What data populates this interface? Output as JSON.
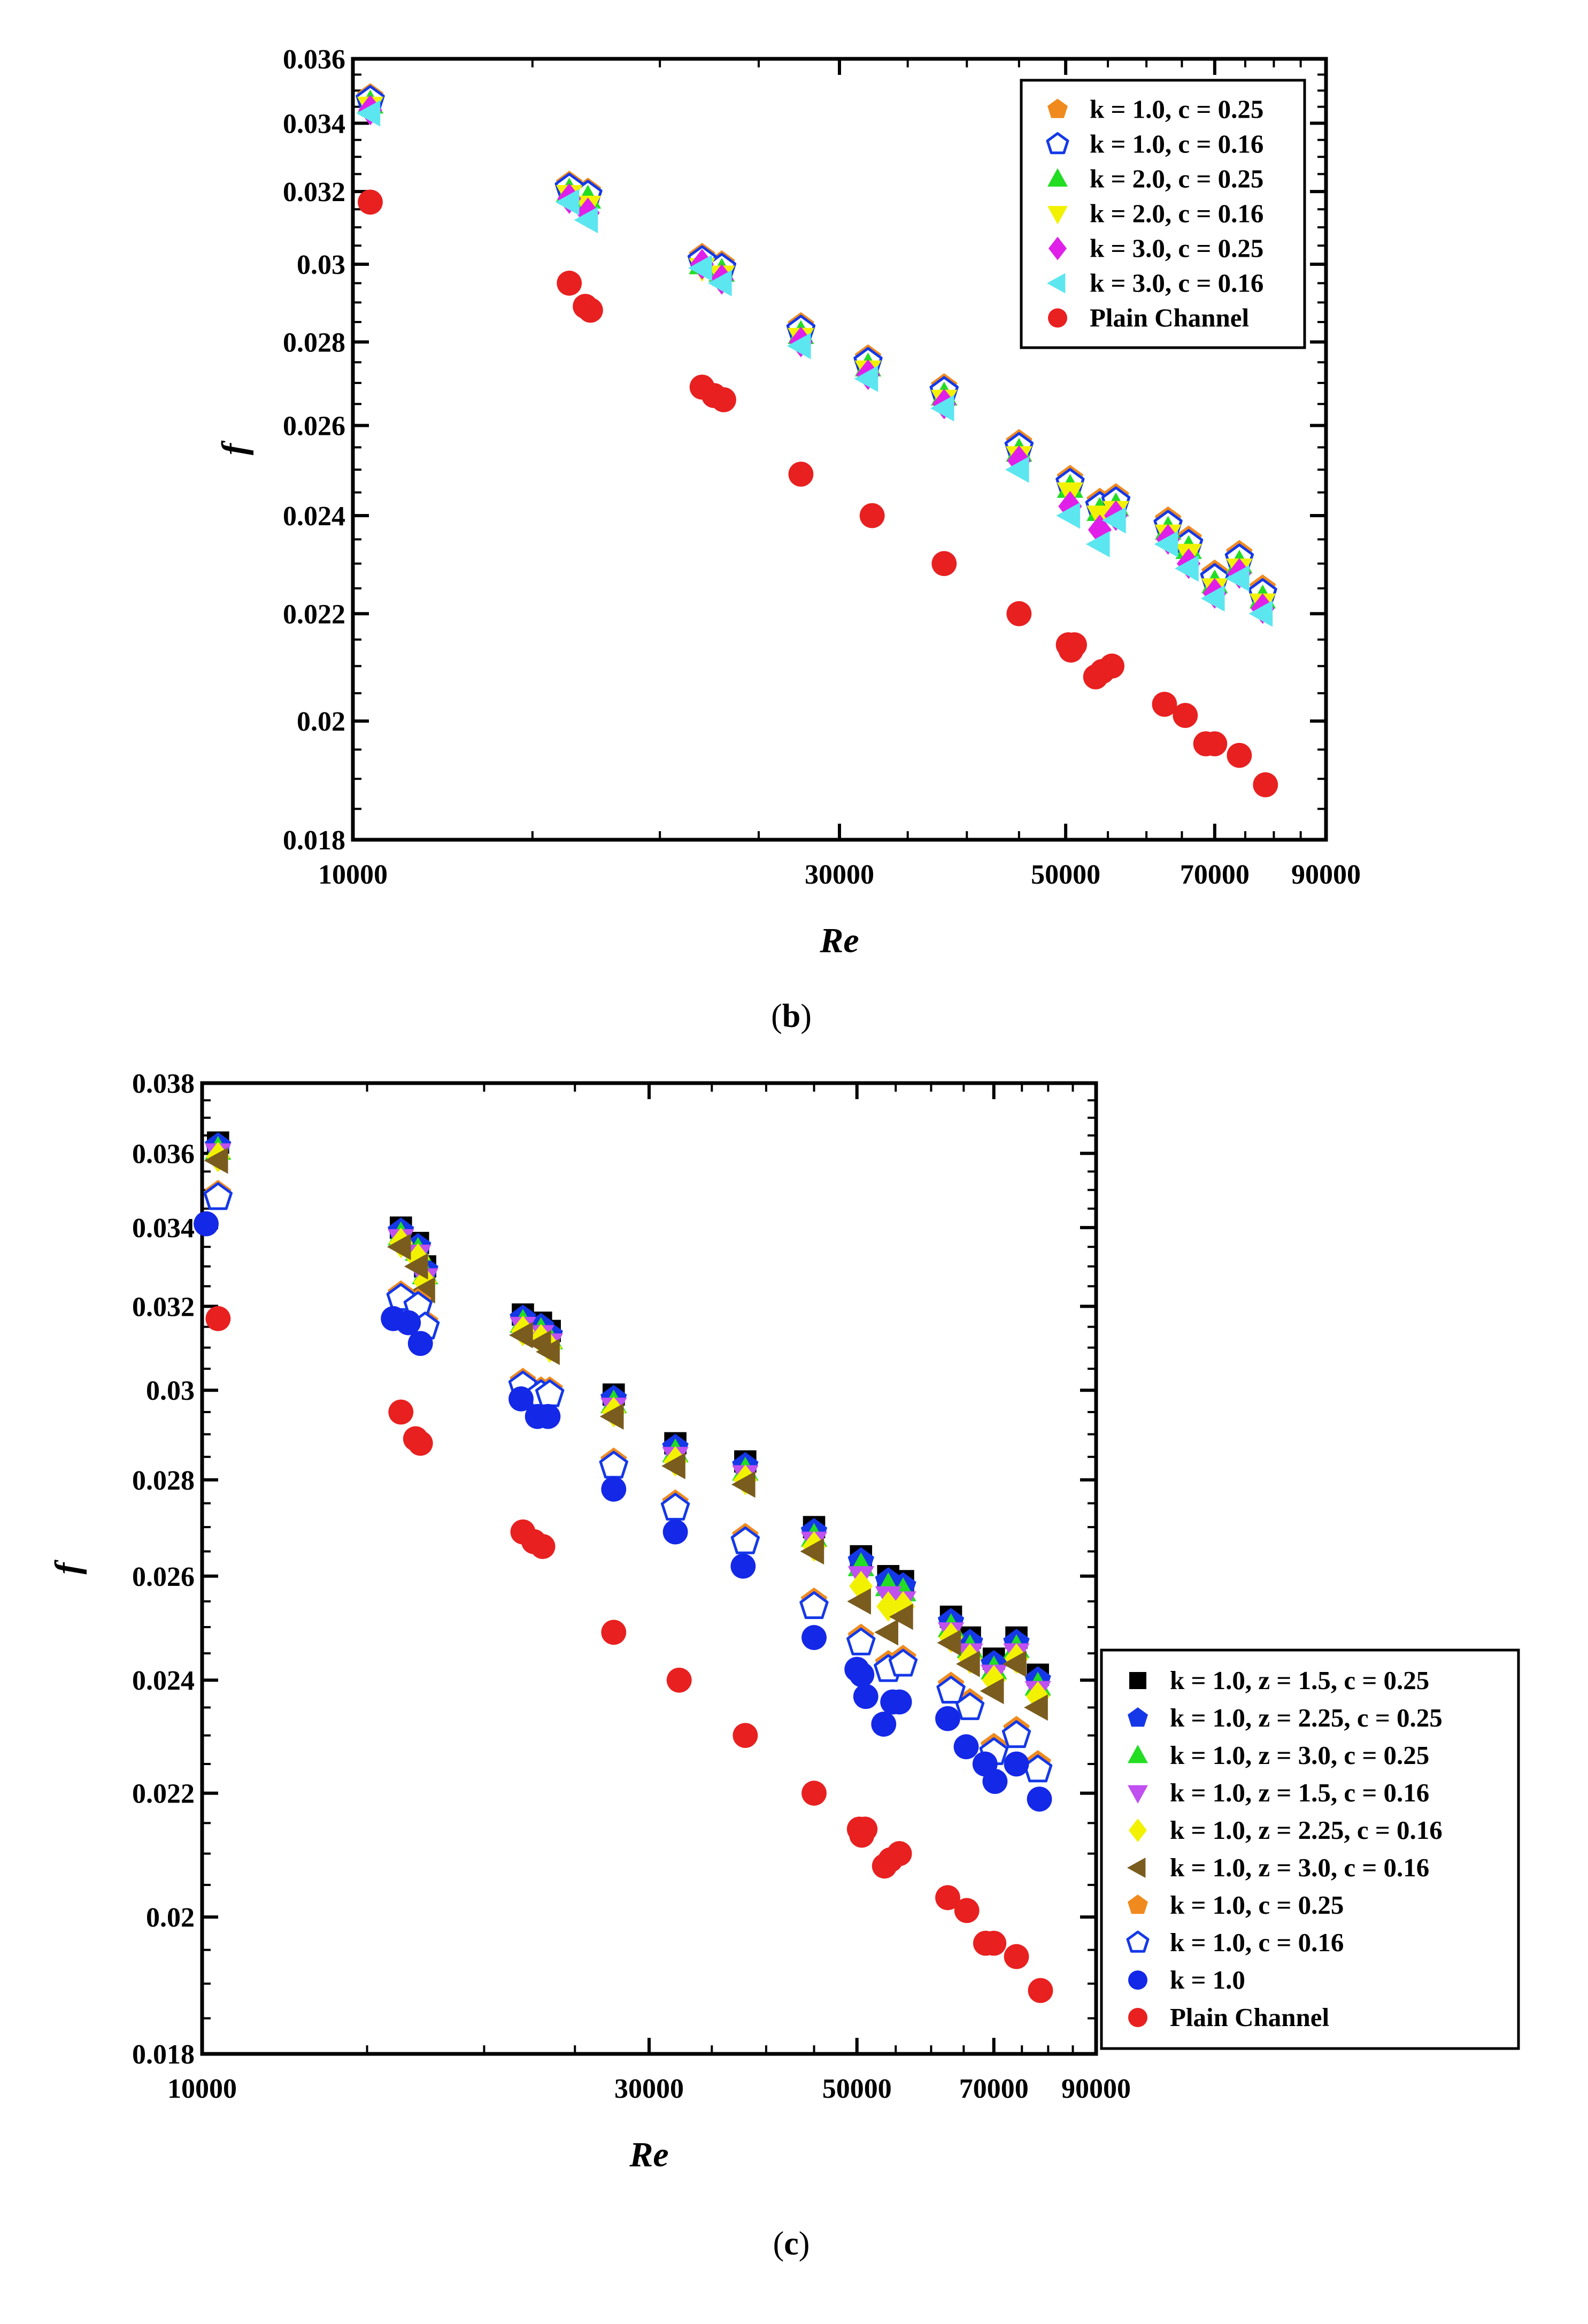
{
  "chart_data": [
    {
      "id": "b",
      "type": "scatter",
      "caption_letter": "b",
      "xlabel": "Re",
      "ylabel": "f",
      "xscale": "log",
      "yscale": "log",
      "xlim": [
        10000,
        90000
      ],
      "ylim": [
        0.018,
        0.036
      ],
      "xticks": [
        10000,
        30000,
        50000,
        70000,
        90000
      ],
      "xtick_labels": [
        "10000",
        "30000",
        "50000",
        "70000",
        "90000"
      ],
      "yticks": [
        0.018,
        0.02,
        0.022,
        0.024,
        0.026,
        0.028,
        0.03,
        0.032,
        0.034,
        0.036
      ],
      "ytick_labels": [
        "0.018",
        "0.02",
        "0.022",
        "0.024",
        "0.026",
        "0.028",
        "0.03",
        "0.032",
        "0.034",
        "0.036"
      ],
      "legend_position": "top-right",
      "series": [
        {
          "name": "k = 1.0, c = 0.25",
          "marker": "pentagon",
          "color": "#F08A1E",
          "filled": true,
          "x": [
            10400,
            16300,
            17000,
            22000,
            23000,
            27500,
            32000,
            38000,
            45000,
            50500,
            54000,
            56000,
            63000,
            66000,
            70000,
            74000,
            78000
          ],
          "y": [
            0.0348,
            0.0322,
            0.032,
            0.0302,
            0.03,
            0.0284,
            0.0276,
            0.0269,
            0.0256,
            0.0248,
            0.0243,
            0.0244,
            0.0239,
            0.0235,
            0.0228,
            0.0232,
            0.0225
          ]
        },
        {
          "name": "k = 1.0, c = 0.16",
          "marker": "pentagon",
          "color": "#1438E8",
          "filled": false,
          "x": [
            10400,
            16300,
            17000,
            22000,
            23000,
            27500,
            32000,
            38000,
            45000,
            50500,
            54000,
            56000,
            63000,
            66000,
            70000,
            74000,
            78000
          ],
          "y": [
            0.0347,
            0.0321,
            0.0319,
            0.0301,
            0.0299,
            0.0283,
            0.0275,
            0.0268,
            0.0255,
            0.0247,
            0.0242,
            0.0243,
            0.0238,
            0.0234,
            0.0227,
            0.0231,
            0.0224
          ]
        },
        {
          "name": "k = 2.0, c = 0.25",
          "marker": "triangle-up",
          "color": "#22DD22",
          "filled": true,
          "x": [
            10400,
            16300,
            17000,
            22000,
            23000,
            27500,
            32000,
            38000,
            45000,
            50500,
            54000,
            56000,
            63000,
            66000,
            70000,
            74000,
            78000
          ],
          "y": [
            0.0346,
            0.032,
            0.0318,
            0.03,
            0.0298,
            0.0282,
            0.0274,
            0.0267,
            0.0254,
            0.0246,
            0.0241,
            0.0242,
            0.0237,
            0.0233,
            0.0226,
            0.023,
            0.0223
          ]
        },
        {
          "name": "k = 2.0, c = 0.16",
          "marker": "triangle-down",
          "color": "#F2F200",
          "filled": true,
          "x": [
            10400,
            16300,
            17000,
            22000,
            23000,
            27500,
            32000,
            38000,
            45000,
            50500,
            54000,
            56000,
            63000,
            66000,
            70000,
            74000,
            78000
          ],
          "y": [
            0.0345,
            0.0319,
            0.0316,
            0.0299,
            0.0297,
            0.0281,
            0.0273,
            0.0266,
            0.0253,
            0.0245,
            0.024,
            0.0241,
            0.0236,
            0.0232,
            0.0225,
            0.0229,
            0.0222
          ]
        },
        {
          "name": "k = 3.0, c = 0.25",
          "marker": "diamond",
          "color": "#E020E8",
          "filled": true,
          "x": [
            10400,
            16300,
            17000,
            22000,
            23000,
            27500,
            32000,
            38000,
            45000,
            50500,
            54000,
            56000,
            63000,
            66000,
            70000,
            74000,
            78000
          ],
          "y": [
            0.0344,
            0.0318,
            0.0314,
            0.03,
            0.0296,
            0.028,
            0.0272,
            0.0265,
            0.0252,
            0.0242,
            0.0237,
            0.024,
            0.0235,
            0.023,
            0.0224,
            0.0228,
            0.0221
          ]
        },
        {
          "name": "k = 3.0, c = 0.16",
          "marker": "triangle-left",
          "color": "#5CE6F0",
          "filled": true,
          "x": [
            10400,
            16300,
            17000,
            22000,
            23000,
            27500,
            32000,
            38000,
            45000,
            50500,
            54000,
            56000,
            63000,
            66000,
            70000,
            74000,
            78000
          ],
          "y": [
            0.0343,
            0.0317,
            0.0312,
            0.0299,
            0.0295,
            0.0279,
            0.0271,
            0.0264,
            0.025,
            0.024,
            0.0234,
            0.0239,
            0.0234,
            0.0229,
            0.0223,
            0.0227,
            0.022
          ]
        },
        {
          "name": "Plain Channel",
          "marker": "circle",
          "color": "#E82020",
          "filled": true,
          "x": [
            10400,
            16300,
            16900,
            17100,
            22000,
            22600,
            23100,
            27500,
            32300,
            38000,
            45000,
            50300,
            50600,
            51000,
            53500,
            54300,
            55500,
            62500,
            65500,
            68600,
            70000,
            74000,
            78500
          ],
          "y": [
            0.0317,
            0.0295,
            0.0289,
            0.0288,
            0.0269,
            0.0267,
            0.0266,
            0.0249,
            0.024,
            0.023,
            0.022,
            0.0214,
            0.0213,
            0.0214,
            0.0208,
            0.0209,
            0.021,
            0.0203,
            0.0201,
            0.0196,
            0.0196,
            0.0194,
            0.0189
          ]
        }
      ]
    },
    {
      "id": "c",
      "type": "scatter",
      "caption_letter": "c",
      "xlabel": "Re",
      "ylabel": "f",
      "xscale": "log",
      "yscale": "log",
      "xlim": [
        10000,
        90000
      ],
      "ylim": [
        0.018,
        0.038
      ],
      "xticks": [
        10000,
        30000,
        50000,
        70000,
        90000
      ],
      "xtick_labels": [
        "10000",
        "30000",
        "50000",
        "70000",
        "90000"
      ],
      "yticks": [
        0.018,
        0.02,
        0.022,
        0.024,
        0.026,
        0.028,
        0.03,
        0.032,
        0.034,
        0.036,
        0.038
      ],
      "ytick_labels": [
        "0.018",
        "0.02",
        "0.022",
        "0.024",
        "0.026",
        "0.028",
        "0.03",
        "0.032",
        "0.034",
        "0.036",
        "0.038"
      ],
      "legend_position": "right-outside-bottom",
      "series": [
        {
          "name": "k = 1.0, z = 1.5, c = 0.25",
          "marker": "square",
          "color": "#000000",
          "filled": true,
          "x": [
            10400,
            16300,
            17000,
            17300,
            22000,
            23000,
            23500,
            27500,
            32000,
            38000,
            45000,
            50500,
            54000,
            56000,
            63000,
            66000,
            70000,
            74000,
            78000
          ],
          "y": [
            0.0363,
            0.034,
            0.0336,
            0.033,
            0.0318,
            0.0316,
            0.0314,
            0.0299,
            0.0288,
            0.0284,
            0.027,
            0.0264,
            0.026,
            0.0259,
            0.0252,
            0.0248,
            0.0244,
            0.0248,
            0.0241
          ]
        },
        {
          "name": "k = 1.0, z = 2.25, c = 0.25",
          "marker": "pentagon",
          "color": "#1438E8",
          "filled": true,
          "x": [
            10400,
            16300,
            17000,
            17300,
            22000,
            23000,
            23500,
            27500,
            32000,
            38000,
            45000,
            50500,
            54000,
            56000,
            63000,
            66000,
            70000,
            74000,
            78000
          ],
          "y": [
            0.0362,
            0.0339,
            0.0335,
            0.0329,
            0.0317,
            0.0315,
            0.0313,
            0.0298,
            0.0287,
            0.0283,
            0.0269,
            0.0263,
            0.0259,
            0.0258,
            0.0251,
            0.0247,
            0.0243,
            0.0247,
            0.024
          ]
        },
        {
          "name": "k = 1.0, z = 3.0, c = 0.25",
          "marker": "triangle-up",
          "color": "#22DD22",
          "filled": true,
          "x": [
            10400,
            16300,
            17000,
            17300,
            22000,
            23000,
            23500,
            27500,
            32000,
            38000,
            45000,
            50500,
            54000,
            56000,
            63000,
            66000,
            70000,
            74000,
            78000
          ],
          "y": [
            0.0361,
            0.0338,
            0.0334,
            0.0328,
            0.0316,
            0.0314,
            0.0312,
            0.0297,
            0.0286,
            0.0282,
            0.0268,
            0.0262,
            0.0258,
            0.0257,
            0.025,
            0.0246,
            0.0242,
            0.0246,
            0.0239
          ]
        },
        {
          "name": "k = 1.0, z = 1.5, c = 0.16",
          "marker": "triangle-down",
          "color": "#C050F0",
          "filled": true,
          "x": [
            10400,
            16300,
            17000,
            17300,
            22000,
            23000,
            23500,
            27500,
            32000,
            38000,
            45000,
            50500,
            54000,
            56000,
            63000,
            66000,
            70000,
            74000,
            78000
          ],
          "y": [
            0.036,
            0.0337,
            0.0333,
            0.0327,
            0.0315,
            0.0313,
            0.0311,
            0.0296,
            0.0285,
            0.0281,
            0.0267,
            0.026,
            0.0256,
            0.0255,
            0.0249,
            0.0245,
            0.0241,
            0.0245,
            0.0238
          ]
        },
        {
          "name": "k = 1.0, z = 2.25, c = 0.16",
          "marker": "diamond",
          "color": "#F2F200",
          "filled": true,
          "x": [
            10400,
            16300,
            17000,
            17300,
            22000,
            23000,
            23500,
            27500,
            32000,
            38000,
            45000,
            50500,
            54000,
            56000,
            63000,
            66000,
            70000,
            74000,
            78000
          ],
          "y": [
            0.0359,
            0.0336,
            0.0332,
            0.0326,
            0.0314,
            0.0312,
            0.031,
            0.0295,
            0.0284,
            0.028,
            0.0266,
            0.0258,
            0.0254,
            0.0254,
            0.0248,
            0.0244,
            0.024,
            0.0244,
            0.0237
          ]
        },
        {
          "name": "k = 1.0, z = 3.0, c = 0.16",
          "marker": "triangle-left",
          "color": "#7A5C1E",
          "filled": true,
          "x": [
            10400,
            16300,
            17000,
            17300,
            22000,
            23000,
            23500,
            27500,
            32000,
            38000,
            45000,
            50500,
            54000,
            56000,
            63000,
            66000,
            70000,
            74000,
            78000
          ],
          "y": [
            0.0358,
            0.0335,
            0.033,
            0.0324,
            0.0313,
            0.0311,
            0.0309,
            0.0294,
            0.0283,
            0.0279,
            0.0265,
            0.0255,
            0.0249,
            0.0252,
            0.0247,
            0.0243,
            0.0238,
            0.0243,
            0.0235
          ]
        },
        {
          "name": "k = 1.0, c = 0.25",
          "marker": "pentagon",
          "color": "#F08A1E",
          "filled": true,
          "x": [
            10400,
            16300,
            17000,
            17300,
            22000,
            23000,
            23500,
            27500,
            32000,
            38000,
            45000,
            50500,
            54000,
            56000,
            63000,
            66000,
            70000,
            74000,
            78000
          ],
          "y": [
            0.0349,
            0.0323,
            0.0321,
            0.0316,
            0.0302,
            0.03,
            0.03,
            0.0284,
            0.0275,
            0.0268,
            0.0255,
            0.0248,
            0.0243,
            0.0244,
            0.0239,
            0.0236,
            0.0228,
            0.0231,
            0.0225
          ]
        },
        {
          "name": "k = 1.0, c = 0.16",
          "marker": "pentagon",
          "color": "#1438E8",
          "filled": false,
          "x": [
            10400,
            16300,
            17000,
            17300,
            22000,
            23000,
            23500,
            27500,
            32000,
            38000,
            45000,
            50500,
            54000,
            56000,
            63000,
            66000,
            70000,
            74000,
            78000
          ],
          "y": [
            0.0348,
            0.0322,
            0.032,
            0.0315,
            0.0301,
            0.0299,
            0.0299,
            0.0283,
            0.0274,
            0.0267,
            0.0254,
            0.0247,
            0.0242,
            0.0243,
            0.0238,
            0.0235,
            0.0227,
            0.023,
            0.0224
          ]
        },
        {
          "name": "k = 1.0",
          "marker": "circle",
          "color": "#1428E8",
          "filled": true,
          "x": [
            10100,
            16000,
            16600,
            17100,
            21900,
            22800,
            23400,
            27500,
            32000,
            37800,
            45000,
            50000,
            50600,
            51100,
            53400,
            54600,
            55500,
            62500,
            65400,
            68500,
            70200,
            74000,
            78300
          ],
          "y": [
            0.0341,
            0.0317,
            0.0316,
            0.0311,
            0.0298,
            0.0294,
            0.0294,
            0.0278,
            0.0269,
            0.0262,
            0.0248,
            0.0242,
            0.0241,
            0.0237,
            0.0232,
            0.0236,
            0.0236,
            0.0233,
            0.0228,
            0.0225,
            0.0222,
            0.0225,
            0.0219
          ]
        },
        {
          "name": "Plain Channel",
          "marker": "circle",
          "color": "#E82020",
          "filled": true,
          "x": [
            10400,
            16300,
            16900,
            17100,
            22000,
            22600,
            23100,
            27500,
            32300,
            38000,
            45000,
            50300,
            50600,
            51000,
            53500,
            54300,
            55500,
            62500,
            65500,
            68600,
            70000,
            74000,
            78500
          ],
          "y": [
            0.0317,
            0.0295,
            0.0289,
            0.0288,
            0.0269,
            0.0267,
            0.0266,
            0.0249,
            0.024,
            0.023,
            0.022,
            0.0214,
            0.0213,
            0.0214,
            0.0208,
            0.0209,
            0.021,
            0.0203,
            0.0201,
            0.0196,
            0.0196,
            0.0194,
            0.0189
          ]
        }
      ]
    }
  ]
}
